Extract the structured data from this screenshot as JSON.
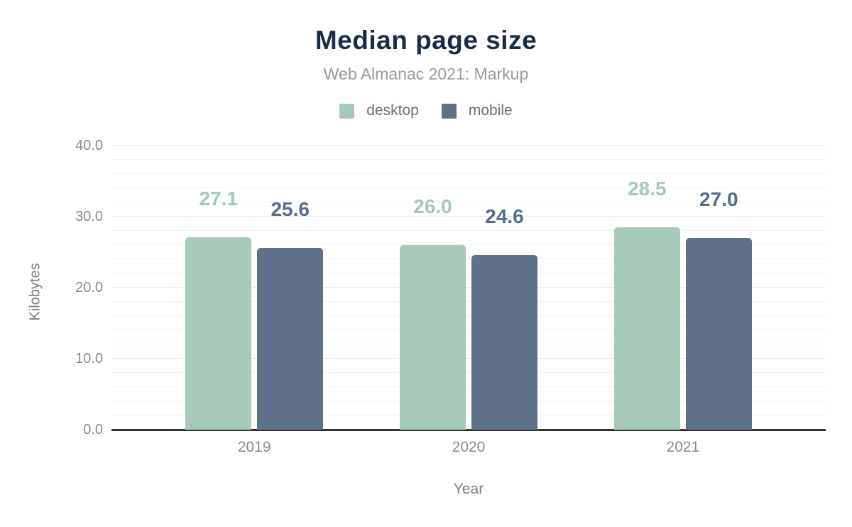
{
  "chart_data": {
    "type": "bar",
    "title": "Median page size",
    "subtitle": "Web Almanac 2021: Markup",
    "xlabel": "Year",
    "ylabel": "Kilobytes",
    "categories": [
      "2019",
      "2020",
      "2021"
    ],
    "series": [
      {
        "name": "desktop",
        "color": "#a7c9b8",
        "label_color": "#a7c9b8",
        "values": [
          27.1,
          26.0,
          28.5
        ]
      },
      {
        "name": "mobile",
        "color": "#5f7089",
        "label_color": "#586c8d",
        "values": [
          25.6,
          24.6,
          27.0
        ]
      }
    ],
    "ylim": [
      0,
      40
    ],
    "y_major_step": 10,
    "y_minor_step": 2,
    "y_tick_decimals": 1,
    "value_label_decimals": 1,
    "grid": true,
    "legend_position": "top"
  },
  "colors": {
    "title": "#1a2b49",
    "subtitle": "#9a9a9a",
    "legend_text": "#6e6e6e",
    "tick_text": "#8a8a8a",
    "axis_title_text": "#808080",
    "axis_line": "#333333",
    "grid_major": "#e7e7e7",
    "grid_minor": "#f3f3f3",
    "background": "#ffffff"
  }
}
